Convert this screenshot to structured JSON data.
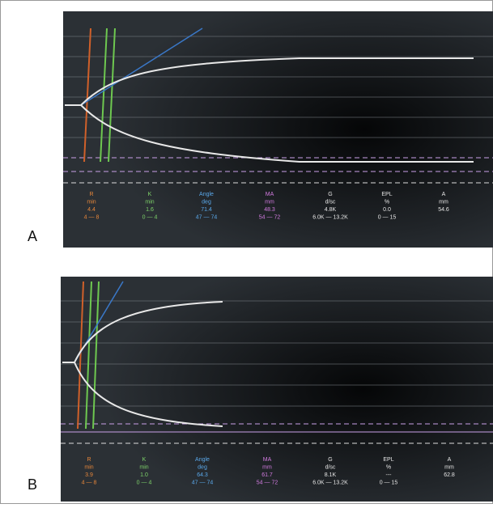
{
  "panels": [
    {
      "label": "A",
      "params": [
        {
          "name": "R",
          "unit": "min",
          "value": "4.4",
          "range": "4 — 8"
        },
        {
          "name": "K",
          "unit": "min",
          "value": "1.6",
          "range": "0 — 4"
        },
        {
          "name": "Angle",
          "unit": "deg",
          "value": "71.4",
          "range": "47 — 74"
        },
        {
          "name": "MA",
          "unit": "mm",
          "value": "48.3",
          "range": "54 — 72"
        },
        {
          "name": "G",
          "unit": "d/sc",
          "value": "4.8K",
          "range": "6.0K — 13.2K"
        },
        {
          "name": "EPL",
          "unit": "%",
          "value": "0.0",
          "range": "0 — 15"
        },
        {
          "name": "A",
          "unit": "mm",
          "value": "54.6"
        }
      ]
    },
    {
      "label": "B",
      "params": [
        {
          "name": "R",
          "unit": "min",
          "value": "3.9",
          "range": "4 — 8"
        },
        {
          "name": "K",
          "unit": "min",
          "value": "1.0",
          "range": "0 — 4"
        },
        {
          "name": "Angle",
          "unit": "deg",
          "value": "64.3",
          "range": "47 — 74"
        },
        {
          "name": "MA",
          "unit": "mm",
          "value": "61.7",
          "range": "54 — 72"
        },
        {
          "name": "G",
          "unit": "d/sc",
          "value": "8.1K",
          "range": "6.0K — 13.2K"
        },
        {
          "name": "EPL",
          "unit": "%",
          "value": "---",
          "range": "0 — 15"
        },
        {
          "name": "A",
          "unit": "mm",
          "value": "62.8"
        }
      ]
    }
  ]
}
